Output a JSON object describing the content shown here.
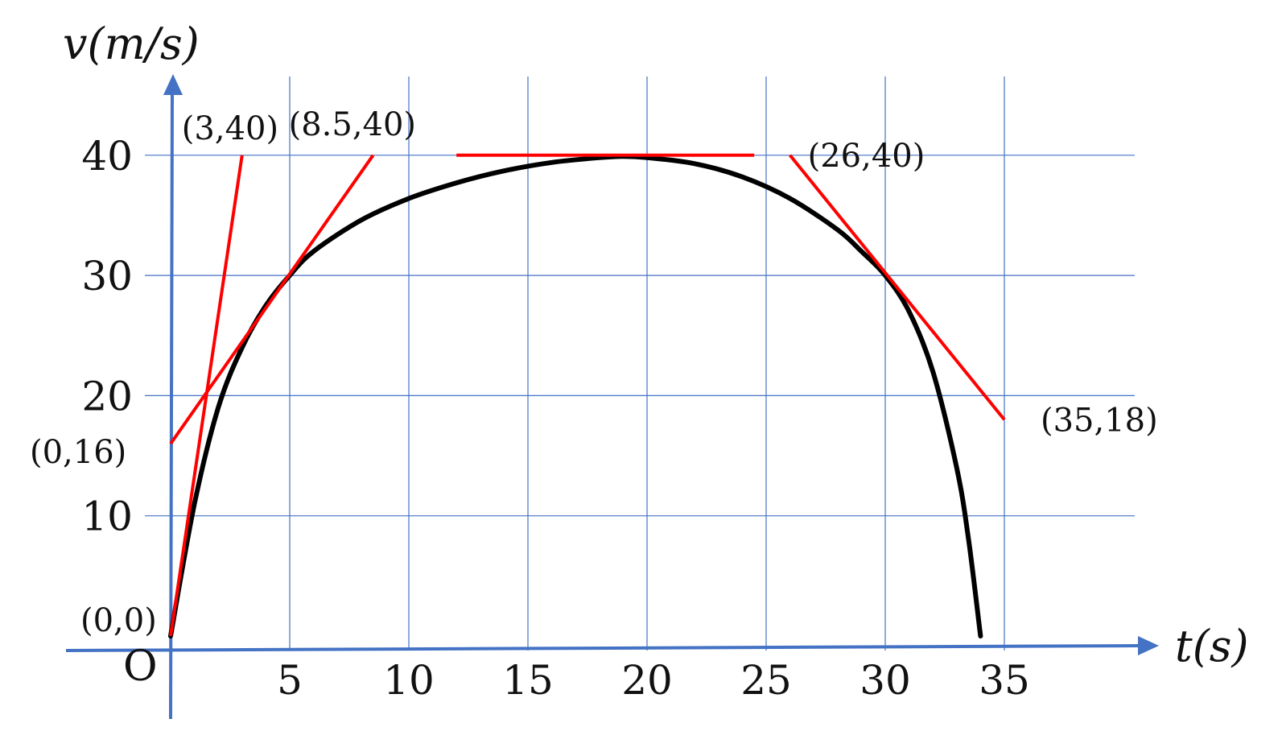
{
  "chart_data": {
    "type": "line",
    "title": "",
    "xlabel": "t(s)",
    "ylabel": "v(m/s)",
    "origin_label": "O",
    "xlim": [
      0,
      40
    ],
    "ylim": [
      0,
      45
    ],
    "grid": true,
    "x_ticks": [
      5,
      10,
      15,
      20,
      25,
      30,
      35
    ],
    "x_tick_labels": [
      "5",
      "10",
      "15",
      "20",
      "25",
      "30",
      "35"
    ],
    "y_ticks": [
      10,
      20,
      30,
      40
    ],
    "y_tick_labels": [
      "10",
      "20",
      "30",
      "40"
    ],
    "colors": {
      "curve": "#000000",
      "tangent": "#ff0000",
      "axis": "#4472c4",
      "grid": "#4472c4"
    },
    "curve": {
      "x": [
        0,
        1,
        2,
        3,
        4,
        5,
        6,
        8,
        10,
        12,
        14,
        16,
        18,
        19,
        20,
        22,
        24,
        26,
        28,
        29,
        30,
        31,
        32,
        33,
        33.5,
        34
      ],
      "y": [
        0,
        11,
        19,
        24,
        27.5,
        30,
        32,
        34.6,
        36.4,
        37.7,
        38.7,
        39.4,
        39.8,
        39.9,
        39.8,
        39.3,
        38.2,
        36.4,
        33.8,
        32,
        30,
        27,
        22,
        14,
        8,
        0
      ]
    },
    "tangents": [
      {
        "from": [
          0,
          0
        ],
        "to": [
          3,
          40
        ]
      },
      {
        "from": [
          0,
          16
        ],
        "to": [
          8.5,
          40
        ]
      },
      {
        "from": [
          12,
          40
        ],
        "to": [
          24.5,
          40
        ]
      },
      {
        "from": [
          26,
          40
        ],
        "to": [
          35,
          18
        ]
      }
    ],
    "annotations": [
      {
        "text": "(3,40)",
        "x": 3,
        "y": 40
      },
      {
        "text": "(8.5,40)",
        "x": 8.5,
        "y": 40
      },
      {
        "text": "(26,40)",
        "x": 26,
        "y": 40
      },
      {
        "text": "(0,16)",
        "x": 0,
        "y": 16
      },
      {
        "text": "(35,18)",
        "x": 35,
        "y": 18
      },
      {
        "text": "(0,0)",
        "x": 0,
        "y": 0
      }
    ]
  }
}
